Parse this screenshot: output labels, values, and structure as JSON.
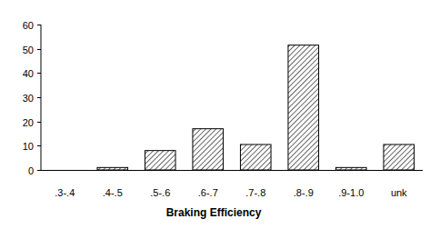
{
  "chart_data": {
    "type": "bar",
    "x_label": "Braking Efficiency",
    "categories": [
      ".3-.4",
      ".4-.5",
      ".5-.6",
      ".6-.7",
      ".7-.8",
      ".8-.9",
      ".9-1.0",
      "unk"
    ],
    "values": [
      0,
      1,
      8,
      17,
      10.5,
      51.5,
      1,
      10.5
    ],
    "color": "#000000",
    "ylim": [
      0,
      60
    ],
    "yticks": [
      0,
      10,
      20,
      30,
      40,
      50,
      60
    ],
    "grid": false
  }
}
